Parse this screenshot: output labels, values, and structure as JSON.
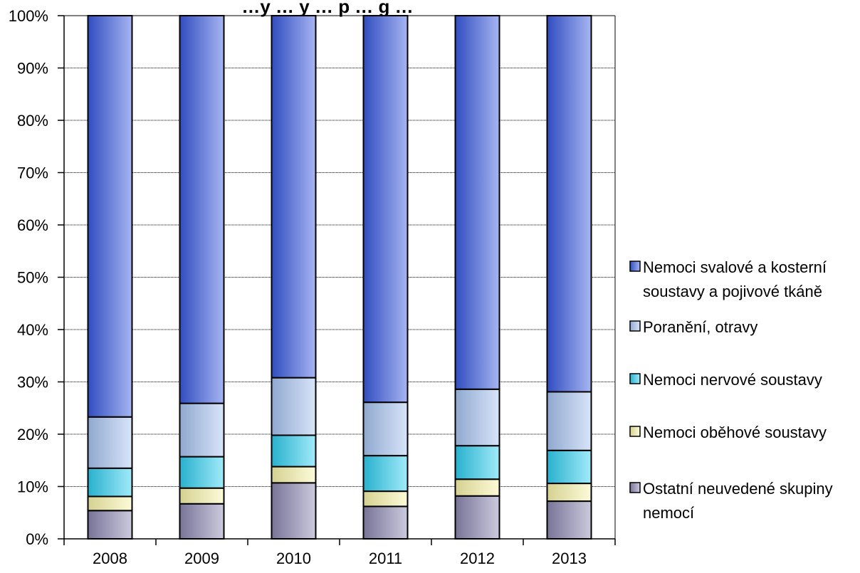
{
  "chart_data": {
    "type": "bar",
    "stacked": true,
    "percent": true,
    "title": "…y … y … p … g …",
    "categories": [
      "2008",
      "2009",
      "2010",
      "2011",
      "2012",
      "2013"
    ],
    "ylim": [
      0,
      100
    ],
    "yticks": [
      "0%",
      "10%",
      "20%",
      "30%",
      "40%",
      "50%",
      "60%",
      "70%",
      "80%",
      "90%",
      "100%"
    ],
    "grid": true,
    "legend_position": "right",
    "series": [
      {
        "name": "Ostatní neuvedené skupiny nemocí",
        "lines": [
          "Ostatní neuvedené skupiny",
          "nemocí"
        ],
        "values": [
          5.4,
          6.7,
          10.7,
          6.2,
          8.2,
          7.2
        ],
        "color": "#8d89b3"
      },
      {
        "name": "Nemoci oběhové soustavy",
        "lines": [
          "Nemoci oběhové soustavy"
        ],
        "values": [
          2.7,
          3.0,
          3.1,
          2.9,
          3.2,
          3.4
        ],
        "color": "#fbf6aa"
      },
      {
        "name": "Nemoci nervové soustavy",
        "lines": [
          "Nemoci nervové soustavy"
        ],
        "values": [
          5.4,
          6.0,
          6.0,
          6.8,
          6.4,
          6.3
        ],
        "color": "#2fd0f2"
      },
      {
        "name": "Poranění, otravy",
        "lines": [
          "Poranění, otravy"
        ],
        "values": [
          9.8,
          10.2,
          11.0,
          10.2,
          10.8,
          11.2
        ],
        "color": "#a9c6f3"
      },
      {
        "name": "Nemoci svalové a kosterní soustavy a pojivové tkáně",
        "lines": [
          "Nemoci svalové  a kosterní",
          "soustavy a pojivové tkáně"
        ],
        "values": [
          76.7,
          74.1,
          69.2,
          73.9,
          71.4,
          71.9
        ],
        "color": "#3a5be2"
      }
    ]
  }
}
